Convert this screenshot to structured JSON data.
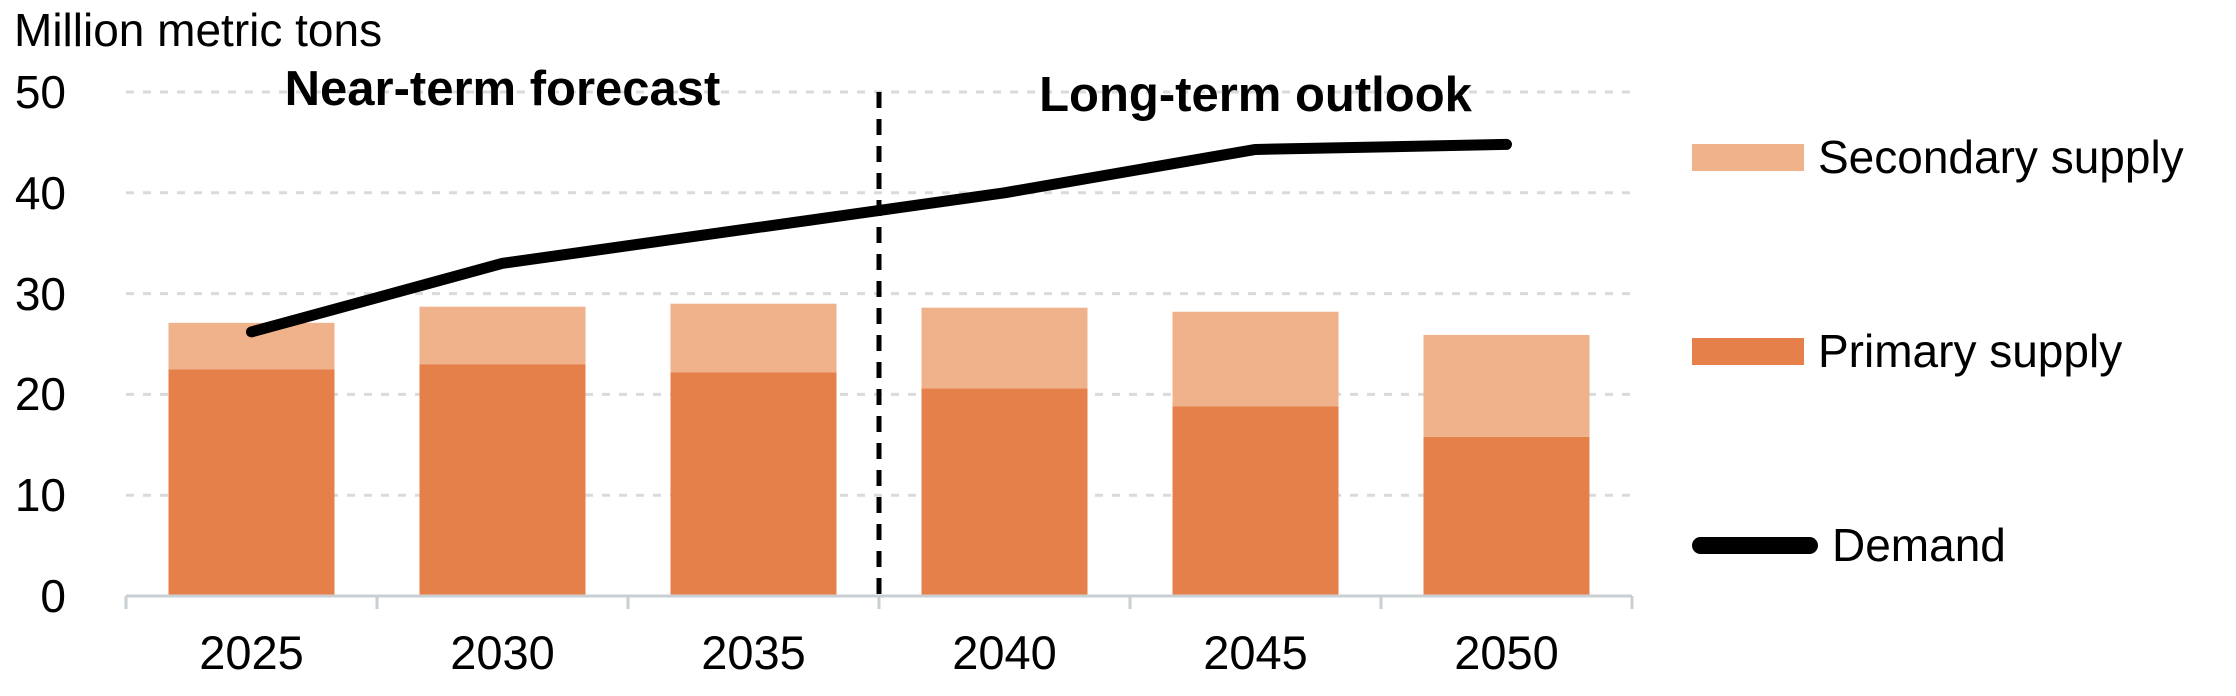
{
  "y_axis_title": "Million metric tons",
  "sections": {
    "near": "Near-term forecast",
    "long": "Long-term outlook"
  },
  "legend": {
    "secondary_label": "Secondary supply",
    "primary_label": "Primary supply",
    "demand_label": "Demand"
  },
  "colors": {
    "primary": "#E5804A",
    "secondary": "#EFB28A",
    "demand": "#000000",
    "gridline": "#DADADA",
    "axis": "#C9CFD2",
    "divider": "#000000"
  },
  "chart_data": {
    "type": "bar",
    "subtype": "stacked-bars-with-line-overlay",
    "title": "",
    "ylabel": "Million metric tons",
    "xlabel": "",
    "categories": [
      "2025",
      "2030",
      "2035",
      "2040",
      "2045",
      "2050"
    ],
    "series": [
      {
        "name": "Primary supply",
        "type": "bar-stack",
        "values": [
          22.5,
          23.0,
          22.2,
          20.6,
          18.8,
          15.8
        ]
      },
      {
        "name": "Secondary supply",
        "type": "bar-stack",
        "values": [
          4.6,
          5.7,
          6.8,
          8.0,
          9.4,
          10.1
        ]
      },
      {
        "name": "Demand",
        "type": "line",
        "values": [
          26.2,
          33.0,
          36.5,
          40.0,
          44.3,
          44.8
        ]
      }
    ],
    "stacked_totals": [
      27.1,
      28.7,
      29.0,
      28.6,
      28.2,
      25.9
    ],
    "y_ticks": [
      0,
      10,
      20,
      30,
      40,
      50
    ],
    "ylim": [
      0,
      50
    ],
    "grid": "horizontal-dotted",
    "legend_position": "right",
    "annotations": {
      "near_term_label": "Near-term forecast",
      "long_term_label": "Long-term outlook",
      "dashed_divider_between": [
        "2035",
        "2040"
      ]
    }
  }
}
